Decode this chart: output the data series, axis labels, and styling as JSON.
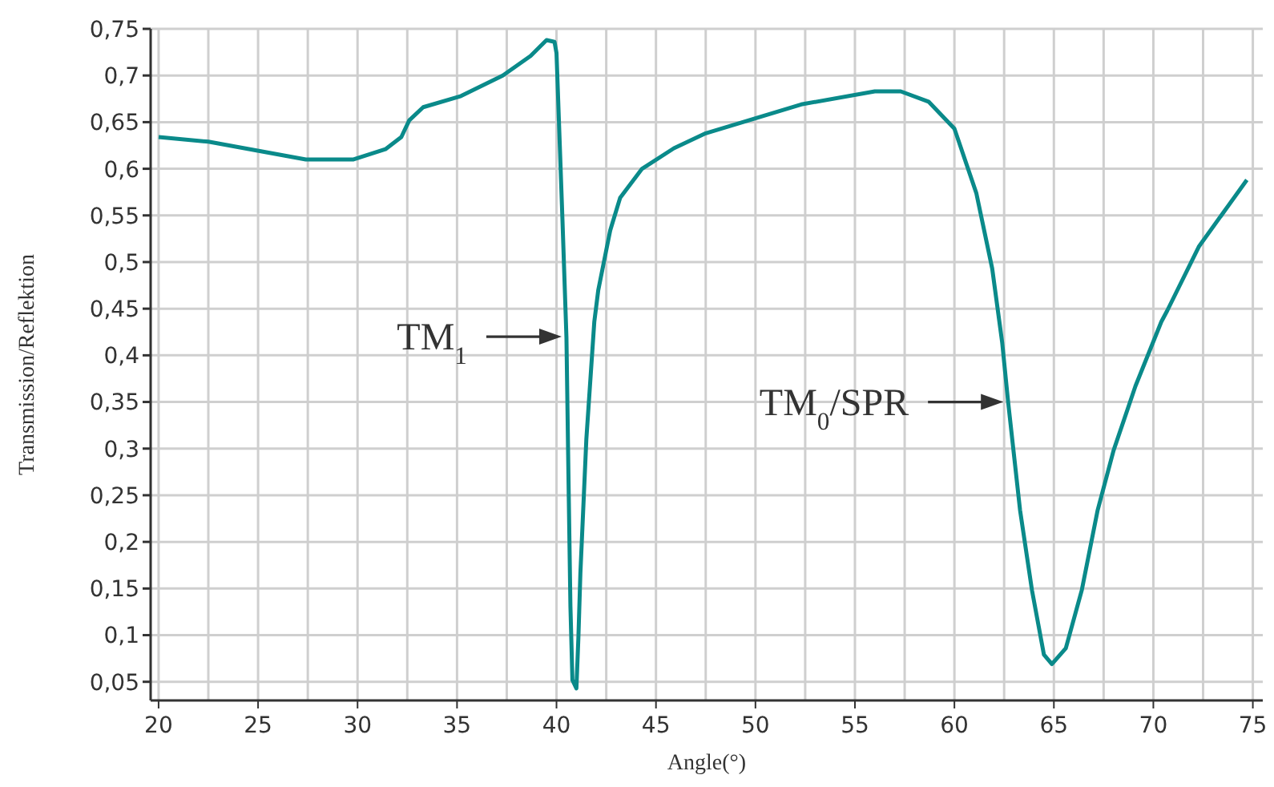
{
  "chart_data": {
    "type": "line",
    "xlabel": "Angle(°)",
    "ylabel": "Transmission/Reflektion",
    "series": [
      {
        "color": "#0a8a8a",
        "x": [
          20,
          22.5,
          27.4,
          29.8,
          31.4,
          32.2,
          32.6,
          33.3,
          35.2,
          37.3,
          38.7,
          39.5,
          39.9,
          40.0,
          40.3,
          40.5,
          40.6,
          40.7,
          40.8,
          41.0,
          41.1,
          41.2,
          41.5,
          41.9,
          42.1,
          42.7,
          43.2,
          44.3,
          45.9,
          47.5,
          52.3,
          56.0,
          57.3,
          58.7,
          60.0,
          61.1,
          61.9,
          62.4,
          62.7,
          63.3,
          63.9,
          64.5,
          64.9,
          65.6,
          66.4,
          67.2,
          68.0,
          69.1,
          70.4,
          70.7,
          72.3,
          74.7
        ],
        "values": [
          0.634,
          0.629,
          0.61,
          0.61,
          0.621,
          0.634,
          0.652,
          0.666,
          0.678,
          0.7,
          0.721,
          0.738,
          0.736,
          0.724,
          0.545,
          0.419,
          0.272,
          0.131,
          0.052,
          0.043,
          0.097,
          0.166,
          0.31,
          0.436,
          0.47,
          0.534,
          0.569,
          0.6,
          0.622,
          0.638,
          0.669,
          0.683,
          0.683,
          0.672,
          0.643,
          0.574,
          0.493,
          0.414,
          0.35,
          0.234,
          0.148,
          0.079,
          0.069,
          0.086,
          0.148,
          0.234,
          0.298,
          0.367,
          0.436,
          0.448,
          0.517,
          0.588
        ]
      }
    ],
    "xlim": [
      19.6,
      75.5
    ],
    "ylim": [
      0.03,
      0.75
    ],
    "xticks": [
      20,
      {
        "value": 22.5,
        "label": null
      },
      25,
      {
        "value": 27.5,
        "label": null
      },
      30,
      {
        "value": 32.5,
        "label": null
      },
      35,
      {
        "value": 37.5,
        "label": null
      },
      40,
      {
        "value": 42.5,
        "label": null
      },
      45,
      {
        "value": 47.5,
        "label": null
      },
      50,
      {
        "value": 52.5,
        "label": null
      },
      55,
      {
        "value": 57.5,
        "label": null
      },
      60,
      {
        "value": 62.5,
        "label": null
      },
      65,
      {
        "value": 67.5,
        "label": null
      },
      70,
      {
        "value": 72.5,
        "label": null
      },
      75
    ],
    "yticks": [
      {
        "value": 0.05,
        "label": "0,05"
      },
      {
        "value": 0.1,
        "label": "0,1"
      },
      {
        "value": 0.15,
        "label": "0,15"
      },
      {
        "value": 0.2,
        "label": "0,2"
      },
      {
        "value": 0.25,
        "label": "0,25"
      },
      {
        "value": 0.3,
        "label": "0,3"
      },
      {
        "value": 0.35,
        "label": "0,35"
      },
      {
        "value": 0.4,
        "label": "0,4"
      },
      {
        "value": 0.45,
        "label": "0,45"
      },
      {
        "value": 0.5,
        "label": "0,5"
      },
      {
        "value": 0.55,
        "label": "0,55"
      },
      {
        "value": 0.6,
        "label": "0,6"
      },
      {
        "value": 0.65,
        "label": "0,65"
      },
      {
        "value": 0.7,
        "label": "0,7"
      },
      {
        "value": 0.75,
        "label": "0,75"
      }
    ],
    "grid": true,
    "marker": "none",
    "line_style": "solid",
    "annotations": [
      {
        "text": "TM$_{1}$",
        "x": 40.5,
        "y": 0.42
      },
      {
        "text": "TM$_{0}$/SPR",
        "x": 62.7,
        "y": 0.35
      }
    ]
  }
}
